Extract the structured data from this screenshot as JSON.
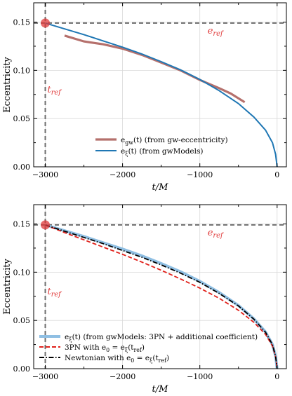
{
  "chart_data": [
    {
      "type": "line",
      "xlabel": "t/M",
      "ylabel": "Eccentricity",
      "xlim": [
        -3150,
        120
      ],
      "ylim": [
        0.0,
        0.17
      ],
      "xticks": [
        -3000,
        -2000,
        -1000,
        0
      ],
      "xtick_labels": [
        "−3000",
        "−2000",
        "−1000",
        "0"
      ],
      "yticks": [
        0.0,
        0.05,
        0.1,
        0.15
      ],
      "ytick_labels": [
        "0.00",
        "0.05",
        "0.10",
        "0.15"
      ],
      "grid": true,
      "legend_position": "bottom-center",
      "reference": {
        "t_ref": -3000,
        "e_ref": 0.149,
        "t_label": "t_ref",
        "e_label": "e_ref",
        "color": "#e03a3a"
      },
      "series": [
        {
          "name": "e_gw(t) (from gw-eccentricity)",
          "color": "#b5706c",
          "x": [
            -2750,
            -2500,
            -2250,
            -2000,
            -1750,
            -1500,
            -1250,
            -1000,
            -750,
            -600,
            -420
          ],
          "y": [
            0.136,
            0.13,
            0.127,
            0.1225,
            0.116,
            0.108,
            0.1,
            0.09,
            0.0815,
            0.076,
            0.067
          ]
        },
        {
          "name": "e_ξ(t) (from gwModels)",
          "color": "#1f77b4",
          "x": [
            -3000,
            -2750,
            -2500,
            -2250,
            -2000,
            -1750,
            -1500,
            -1250,
            -1000,
            -750,
            -500,
            -300,
            -150,
            -60,
            -20,
            0
          ],
          "y": [
            0.149,
            0.143,
            0.137,
            0.1305,
            0.124,
            0.117,
            0.109,
            0.1005,
            0.0905,
            0.079,
            0.0655,
            0.0515,
            0.038,
            0.025,
            0.013,
            0.0
          ]
        }
      ]
    },
    {
      "type": "line",
      "xlabel": "t/M",
      "ylabel": "Eccentricity",
      "xlim": [
        -3150,
        120
      ],
      "ylim": [
        0.0,
        0.17
      ],
      "xticks": [
        -3000,
        -2000,
        -1000,
        0
      ],
      "xtick_labels": [
        "−3000",
        "−2000",
        "−1000",
        "0"
      ],
      "yticks": [
        0.0,
        0.05,
        0.1,
        0.15
      ],
      "ytick_labels": [
        "0.00",
        "0.05",
        "0.10",
        "0.15"
      ],
      "grid": true,
      "legend_position": "bottom-left",
      "reference": {
        "t_ref": -3000,
        "e_ref": 0.149,
        "t_label": "t_ref",
        "e_label": "e_ref",
        "color": "#e03a3a"
      },
      "series": [
        {
          "name": "e_ξ(t) (from gwModels: 3PN + additional coefficient)",
          "color": "#8fbfe3",
          "style": "solid",
          "x": [
            -3000,
            -2750,
            -2500,
            -2250,
            -2000,
            -1750,
            -1500,
            -1250,
            -1000,
            -750,
            -500,
            -300,
            -150,
            -60,
            -20,
            0
          ],
          "y": [
            0.149,
            0.143,
            0.137,
            0.1305,
            0.124,
            0.117,
            0.109,
            0.1005,
            0.0905,
            0.079,
            0.0655,
            0.0515,
            0.038,
            0.025,
            0.013,
            0.0
          ]
        },
        {
          "name": "3PN with e_0 = e_ξ(t_ref)",
          "color": "#e0201a",
          "style": "dashed",
          "x": [
            -3000,
            -2750,
            -2500,
            -2250,
            -2000,
            -1750,
            -1500,
            -1250,
            -1000,
            -750,
            -500,
            -300,
            -150,
            -60,
            -20,
            0
          ],
          "y": [
            0.149,
            0.141,
            0.1335,
            0.126,
            0.1185,
            0.1105,
            0.102,
            0.093,
            0.0835,
            0.073,
            0.0605,
            0.048,
            0.0355,
            0.0235,
            0.0125,
            0.0
          ]
        },
        {
          "name": "Newtonian with e_0 = e_ξ(t_ref)",
          "color": "#000000",
          "style": "dashdot",
          "x": [
            -3000,
            -2750,
            -2500,
            -2250,
            -2000,
            -1750,
            -1500,
            -1250,
            -1000,
            -750,
            -500,
            -300,
            -150,
            -60,
            -20,
            0
          ],
          "y": [
            0.149,
            0.1425,
            0.136,
            0.1295,
            0.1225,
            0.1155,
            0.1075,
            0.099,
            0.0895,
            0.078,
            0.065,
            0.0512,
            0.0378,
            0.0248,
            0.0129,
            0.0
          ]
        }
      ]
    }
  ]
}
